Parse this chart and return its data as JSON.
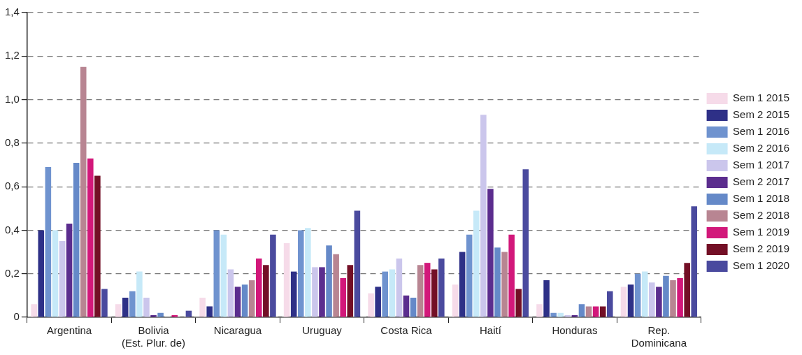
{
  "chart_data": {
    "type": "bar",
    "categories": [
      "Argentina",
      "Bolivia\n(Est. Plur. de)",
      "Nicaragua",
      "Uruguay",
      "Costa Rica",
      "Haití",
      "Honduras",
      "Rep.\nDominicana"
    ],
    "series": [
      {
        "name": "Sem 1 2015",
        "color": "#f6dbe9",
        "values": [
          0.06,
          0.06,
          0.09,
          0.34,
          0.11,
          0.15,
          0.06,
          0.14
        ]
      },
      {
        "name": "Sem 2 2015",
        "color": "#2e3087",
        "values": [
          0.4,
          0.09,
          0.05,
          0.21,
          0.14,
          0.3,
          0.17,
          0.15
        ]
      },
      {
        "name": "Sem 1 2016",
        "color": "#6f93cf",
        "values": [
          0.69,
          0.12,
          0.4,
          0.4,
          0.21,
          0.38,
          0.02,
          0.2
        ]
      },
      {
        "name": "Sem 2 2016",
        "color": "#c6e9f8",
        "values": [
          0.4,
          0.21,
          0.38,
          0.41,
          0.22,
          0.49,
          0.02,
          0.21
        ]
      },
      {
        "name": "Sem 1 2017",
        "color": "#cbc6ec",
        "values": [
          0.35,
          0.09,
          0.22,
          0.23,
          0.27,
          0.93,
          0.01,
          0.16
        ]
      },
      {
        "name": "Sem 2 2017",
        "color": "#5b2d8e",
        "values": [
          0.43,
          0.01,
          0.14,
          0.23,
          0.1,
          0.59,
          0.01,
          0.14
        ]
      },
      {
        "name": "Sem 1 2018",
        "color": "#6589c8",
        "values": [
          0.71,
          0.02,
          0.15,
          0.33,
          0.09,
          0.32,
          0.06,
          0.19
        ]
      },
      {
        "name": "Sem 2 2018",
        "color": "#b88592",
        "values": [
          1.15,
          0,
          0.17,
          0.29,
          0.24,
          0.3,
          0.05,
          0.17
        ]
      },
      {
        "name": "Sem 1 2019",
        "color": "#d2187a",
        "values": [
          0.73,
          0.01,
          0.27,
          0.18,
          0.25,
          0.38,
          0.05,
          0.18
        ]
      },
      {
        "name": "Sem 2 2019",
        "color": "#730f26",
        "values": [
          0.65,
          0,
          0.24,
          0.24,
          0.22,
          0.13,
          0.05,
          0.25
        ]
      },
      {
        "name": "Sem 1 2020",
        "color": "#4a4a9e",
        "values": [
          0.13,
          0.03,
          0.38,
          0.49,
          0.27,
          0.68,
          0.12,
          0.51
        ]
      }
    ],
    "ylim": [
      0,
      1.4
    ],
    "yticks": [
      0,
      {
        "value": 0.2,
        "label": "0,2"
      },
      {
        "value": 0.4,
        "label": "0,4"
      },
      {
        "value": 0.6,
        "label": "0,6"
      },
      {
        "value": 0.8,
        "label": "0,8"
      },
      {
        "value": 1,
        "label": "1,0"
      },
      {
        "value": 1.2,
        "label": "1,2"
      },
      {
        "value": 1.4,
        "label": "1,4"
      }
    ],
    "grid": "y",
    "legend": "right"
  }
}
